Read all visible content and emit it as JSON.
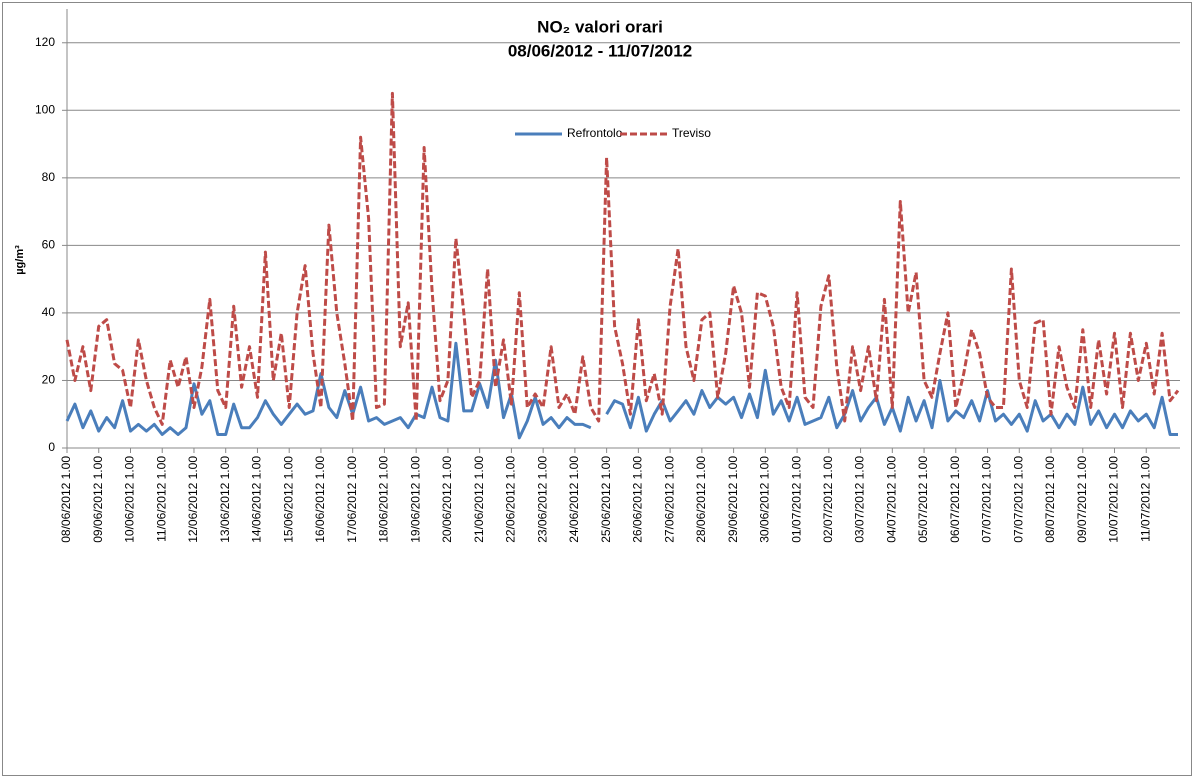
{
  "chart_data": {
    "type": "line",
    "title": "NO₂ valori orari",
    "subtitle": "08/06/2012 - 11/07/2012",
    "y_label": "µg/m³",
    "legend": "top",
    "grid": true,
    "ylim": [
      0,
      130
    ],
    "yticks": [
      0,
      20,
      40,
      60,
      80,
      100,
      120
    ],
    "categories": [
      "08/06/2012 1.00",
      null,
      null,
      null,
      "09/06/2012 1.00",
      null,
      null,
      null,
      "10/06/2012 1.00",
      null,
      null,
      null,
      "11/06/2012 1.00",
      null,
      null,
      null,
      "12/06/2012 1.00",
      null,
      null,
      null,
      "13/06/2012 1.00",
      null,
      null,
      null,
      "14/06/2012 1.00",
      null,
      null,
      null,
      "15/06/2012 1.00",
      null,
      null,
      null,
      "16/06/2012 1.00",
      null,
      null,
      null,
      "17/06/2012 1.00",
      null,
      null,
      null,
      "18/06/2012 1.00",
      null,
      null,
      null,
      "19/06/2012 1.00",
      null,
      null,
      null,
      "20/06/2012 1.00",
      null,
      null,
      null,
      "21/06/2012 1.00",
      null,
      null,
      null,
      "22/06/2012 1.00",
      null,
      null,
      null,
      "23/06/2012 1.00",
      null,
      null,
      null,
      "24/06/2012 1.00",
      null,
      null,
      null,
      "25/06/2012 1.00",
      null,
      null,
      null,
      "26/06/2012 1.00",
      null,
      null,
      null,
      "27/06/2012 1.00",
      null,
      null,
      null,
      "28/06/2012 1.00",
      null,
      null,
      null,
      "29/06/2012 1.00",
      null,
      null,
      null,
      "30/06/2012 1.00",
      null,
      null,
      null,
      "01/07/2012 1.00",
      null,
      null,
      null,
      "02/07/2012 1.00",
      null,
      null,
      null,
      "03/07/2012 1.00",
      null,
      null,
      null,
      "04/07/2012 1.00",
      null,
      null,
      null,
      "05/07/2012 1.00",
      null,
      null,
      null,
      "06/07/2012 1.00",
      null,
      null,
      null,
      "07/07/2012 1.00",
      null,
      null,
      null,
      "07/07/2012 1.00",
      null,
      null,
      null,
      "08/07/2012 1.00",
      null,
      null,
      null,
      "09/07/2012 1.00",
      null,
      null,
      null,
      "10/07/2012 1.00",
      null,
      null,
      null,
      "11/07/2012 1.00",
      null,
      null,
      null,
      null
    ],
    "series": [
      {
        "name": "Refrontolo",
        "color": "#4a7ebb",
        "values": [
          8,
          13,
          6,
          11,
          5,
          9,
          6,
          14,
          5,
          7,
          5,
          7,
          4,
          6,
          4,
          6,
          19,
          10,
          14,
          4,
          4,
          13,
          6,
          6,
          9,
          14,
          10,
          7,
          10,
          13,
          10,
          11,
          22,
          12,
          9,
          17,
          10,
          18,
          8,
          9,
          7,
          8,
          9,
          6,
          10,
          9,
          18,
          9,
          8,
          31,
          11,
          11,
          19,
          12,
          26,
          9,
          16,
          3,
          8,
          15,
          7,
          9,
          6,
          9,
          7,
          7,
          6,
          null,
          10,
          14,
          13,
          6,
          15,
          5,
          10,
          14,
          8,
          11,
          14,
          10,
          17,
          12,
          15,
          13,
          15,
          9,
          16,
          9,
          23,
          10,
          14,
          8,
          15,
          7,
          8,
          9,
          15,
          6,
          10,
          17,
          8,
          12,
          15,
          7,
          12,
          5,
          15,
          8,
          14,
          6,
          20,
          8,
          11,
          9,
          14,
          8,
          17,
          8,
          10,
          7,
          10,
          5,
          14,
          8,
          10,
          6,
          10,
          7,
          18,
          7,
          11,
          6,
          10,
          6,
          11,
          8,
          10,
          6,
          15,
          4,
          4
        ]
      },
      {
        "name": "Treviso",
        "color": "#be4b48",
        "values": [
          32,
          20,
          30,
          17,
          36,
          38,
          25,
          23,
          12,
          32,
          20,
          12,
          7,
          26,
          18,
          27,
          12,
          24,
          44,
          17,
          12,
          42,
          18,
          30,
          15,
          58,
          20,
          34,
          12,
          40,
          54,
          28,
          12,
          66,
          40,
          25,
          8,
          92,
          68,
          12,
          13,
          105,
          30,
          43,
          8,
          89,
          47,
          14,
          20,
          62,
          40,
          15,
          20,
          53,
          18,
          32,
          13,
          46,
          12,
          16,
          12,
          30,
          12,
          16,
          10,
          27,
          12,
          8,
          86,
          36,
          25,
          10,
          38,
          14,
          22,
          10,
          42,
          59,
          30,
          20,
          38,
          40,
          15,
          28,
          48,
          40,
          18,
          46,
          45,
          36,
          18,
          12,
          46,
          15,
          12,
          42,
          51,
          24,
          8,
          30,
          17,
          30,
          14,
          44,
          12,
          73,
          40,
          52,
          20,
          15,
          28,
          40,
          12,
          22,
          35,
          28,
          15,
          12,
          12,
          53,
          20,
          12,
          37,
          38,
          10,
          30,
          18,
          12,
          35,
          12,
          32,
          16,
          34,
          12,
          34,
          20,
          31,
          16,
          34,
          14,
          17
        ]
      }
    ]
  }
}
